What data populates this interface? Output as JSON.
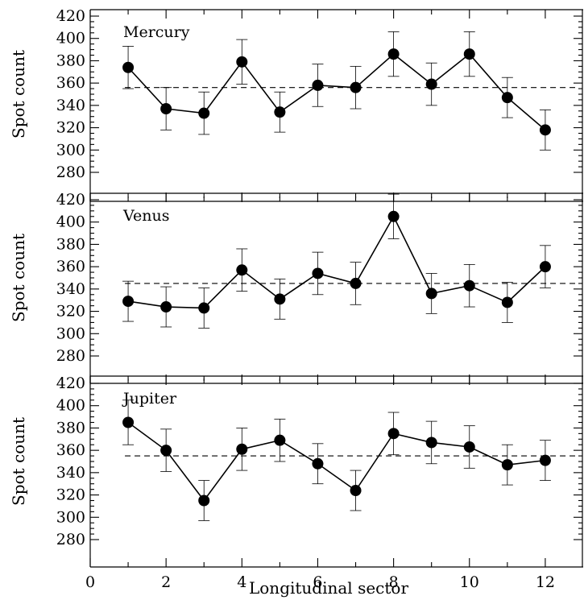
{
  "chart_data": [
    {
      "type": "line",
      "title": "Mercury",
      "xlabel": "",
      "ylabel": "Spot count",
      "xlim": [
        0,
        13
      ],
      "ylim": [
        270,
        425
      ],
      "yticks": [
        280,
        300,
        320,
        340,
        360,
        380,
        400,
        420
      ],
      "x": [
        1,
        2,
        3,
        4,
        5,
        6,
        7,
        8,
        9,
        10,
        11,
        12
      ],
      "values": [
        374,
        337,
        333,
        379,
        334,
        358,
        356,
        386,
        359,
        386,
        347,
        318
      ],
      "error": [
        19,
        19,
        19,
        20,
        18,
        19,
        19,
        20,
        19,
        20,
        18,
        18
      ],
      "mean": 356,
      "grid": false
    },
    {
      "type": "line",
      "title": "Venus",
      "xlabel": "",
      "ylabel": "Spot count",
      "xlim": [
        0,
        13
      ],
      "ylim": [
        270,
        425
      ],
      "yticks": [
        280,
        300,
        320,
        340,
        360,
        380,
        400,
        420
      ],
      "x": [
        1,
        2,
        3,
        4,
        5,
        6,
        7,
        8,
        9,
        10,
        11,
        12
      ],
      "values": [
        329,
        324,
        323,
        357,
        331,
        354,
        345,
        405,
        336,
        343,
        328,
        360
      ],
      "error": [
        18,
        18,
        18,
        19,
        18,
        19,
        19,
        20,
        18,
        19,
        18,
        19
      ],
      "mean": 345,
      "grid": false
    },
    {
      "type": "line",
      "title": "Jupiter",
      "xlabel": "Longitudinal sector",
      "ylabel": "Spot count",
      "xlim": [
        0,
        13
      ],
      "ylim": [
        270,
        425
      ],
      "xticks": [
        0,
        2,
        4,
        6,
        8,
        10,
        12
      ],
      "yticks": [
        280,
        300,
        320,
        340,
        360,
        380,
        400,
        420
      ],
      "x": [
        1,
        2,
        3,
        4,
        5,
        6,
        7,
        8,
        9,
        10,
        11,
        12
      ],
      "values": [
        385,
        360,
        315,
        361,
        369,
        348,
        324,
        375,
        367,
        363,
        347,
        351
      ],
      "error": [
        20,
        19,
        18,
        19,
        19,
        18,
        18,
        19,
        19,
        19,
        18,
        18
      ],
      "mean": 355,
      "grid": false
    }
  ]
}
